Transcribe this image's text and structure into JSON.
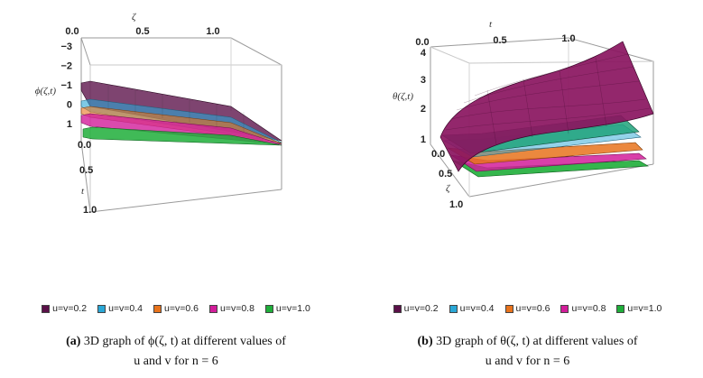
{
  "chart_data": [
    {
      "type": "surface3d",
      "panel": "a",
      "caption": {
        "label": "(a)",
        "text_part1": "3D graph of ϕ(ζ, t) at different values of",
        "text_part2": "u and v for n = 6"
      },
      "axes": {
        "x_label": "ζ",
        "y_label": "t",
        "z_label": "ϕ(ζ,t)",
        "x_ticks": [
          "0.0",
          "0.5",
          "1.0"
        ],
        "y_ticks": [
          "0.0",
          "0.5",
          "1.0"
        ],
        "z_ticks": [
          "−3",
          "−2",
          "−1",
          "0",
          "1"
        ],
        "x_range": [
          0,
          1
        ],
        "y_range": [
          0,
          1
        ],
        "z_range": [
          -3.5,
          1.5
        ]
      },
      "legend": [
        {
          "label": "u=v=0.2",
          "color": "#5a1048"
        },
        {
          "label": "u=v=0.4",
          "color": "#2aa7d6"
        },
        {
          "label": "u=v=0.6",
          "color": "#e8731c"
        },
        {
          "label": "u=v=0.8",
          "color": "#d21d9a"
        },
        {
          "label": "u=v=1.0",
          "color": "#1fae3a"
        }
      ]
    },
    {
      "type": "surface3d",
      "panel": "b",
      "caption": {
        "label": "(b)",
        "text_part1": "3D graph of θ(ζ, t) at different values of",
        "text_part2": "u and v for n = 6"
      },
      "axes": {
        "x_label": "t",
        "y_label": "ζ",
        "z_label": "θ(ζ,t)",
        "x_ticks": [
          "0.0",
          "0.5",
          "1.0"
        ],
        "y_ticks": [
          "0.0",
          "0.5",
          "1.0"
        ],
        "z_ticks": [
          "1",
          "2",
          "3",
          "4"
        ],
        "x_range": [
          0,
          1
        ],
        "y_range": [
          0,
          1
        ],
        "z_range": [
          0.8,
          4.2
        ]
      },
      "legend": [
        {
          "label": "u=v=0.2",
          "color": "#5a1048"
        },
        {
          "label": "u=v=0.4",
          "color": "#2aa7d6"
        },
        {
          "label": "u=v=0.6",
          "color": "#e8731c"
        },
        {
          "label": "u=v=0.8",
          "color": "#d21d9a"
        },
        {
          "label": "u=v=1.0",
          "color": "#1fae3a"
        }
      ]
    }
  ]
}
